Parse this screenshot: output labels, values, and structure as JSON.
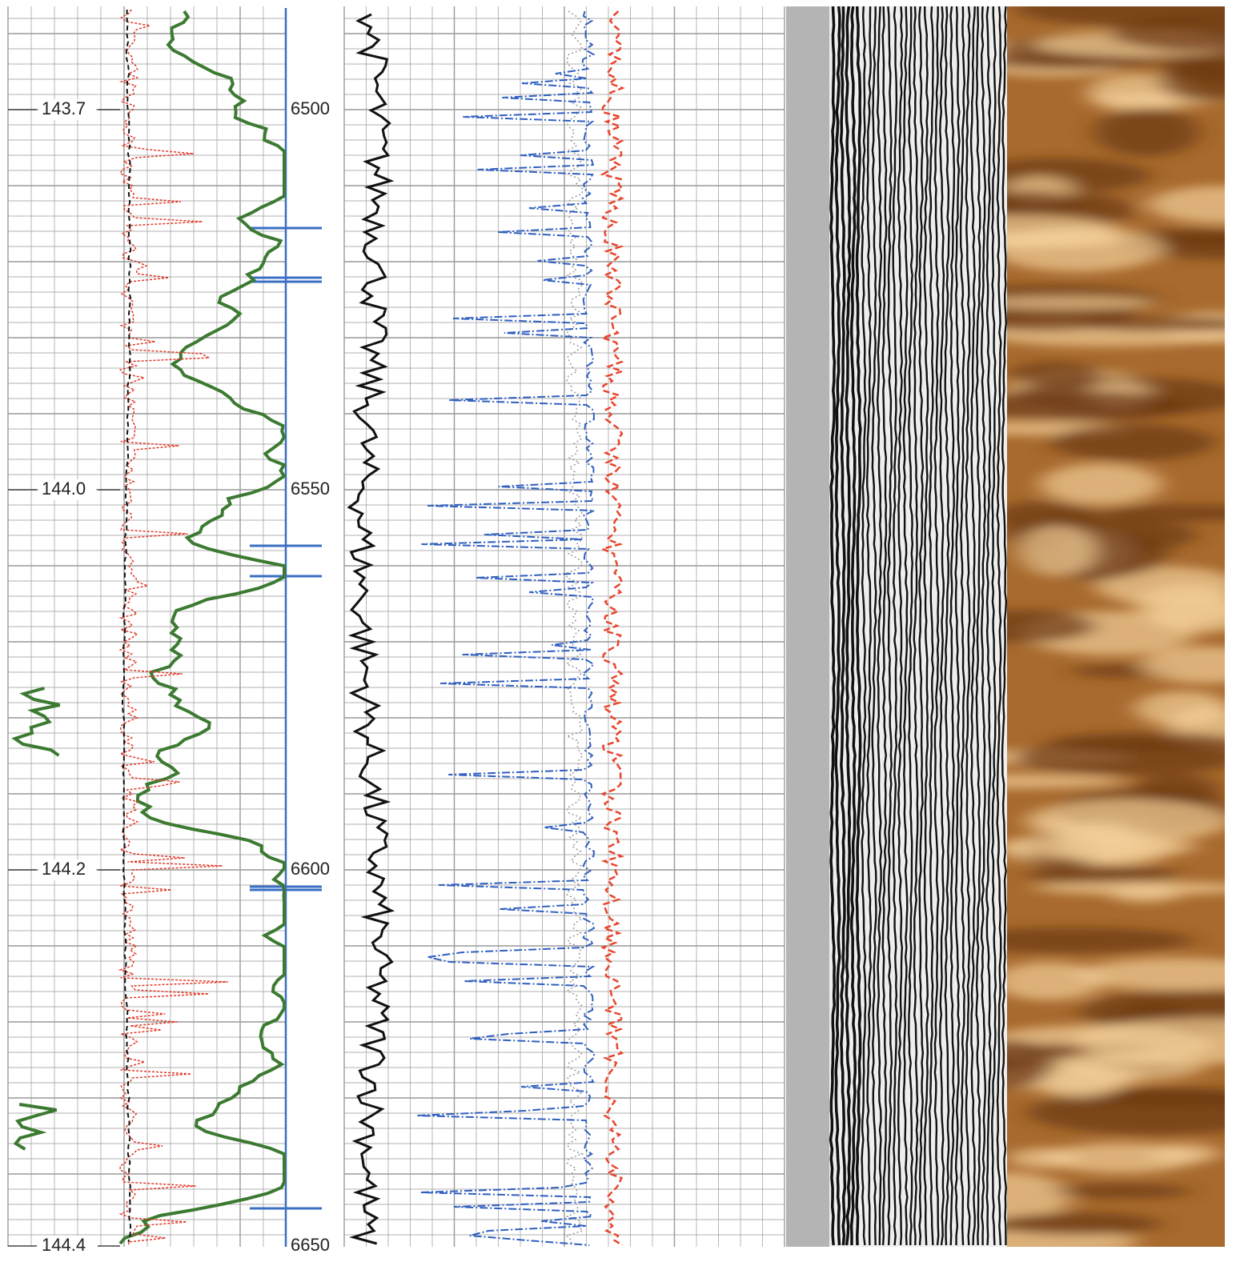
{
  "depth_track": {
    "labels": [
      "6500",
      "6550",
      "6600",
      "6650"
    ]
  },
  "left_track": {
    "labels": [
      "143.7",
      "144.0",
      "144.2",
      "144.4"
    ]
  }
}
